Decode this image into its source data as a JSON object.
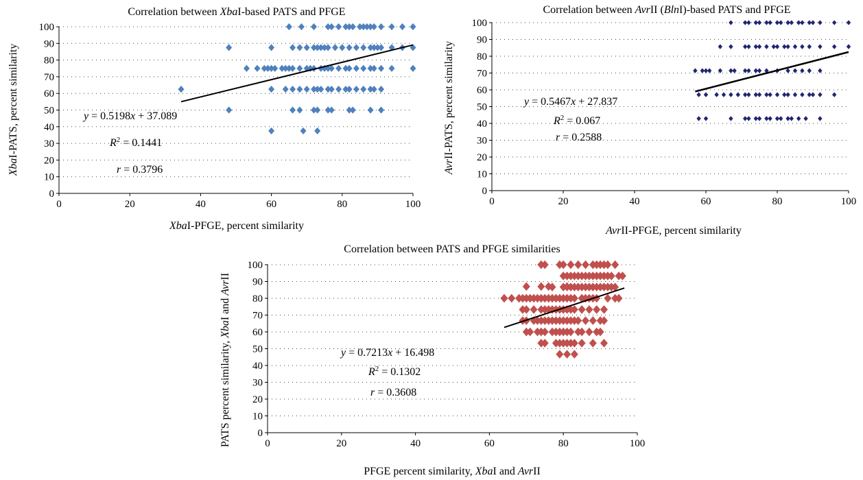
{
  "chart_data": [
    {
      "type": "scatter",
      "title": "Correlation between XbaI-based PATS and PFGE",
      "xlabel": "XbaI-PFGE, percent similarity",
      "ylabel": "XbaI-PATS, percent similarity",
      "xlim": [
        0,
        100
      ],
      "ylim": [
        0,
        100
      ],
      "x_ticks": [
        "0",
        "20",
        "40",
        "60",
        "80",
        "100"
      ],
      "y_ticks": [
        "0",
        "10",
        "20",
        "30",
        "40",
        "50",
        "60",
        "70",
        "80",
        "90",
        "100"
      ],
      "grid": "horizontal-dotted",
      "marker": "diamond",
      "color": "#4f81bd",
      "annotations": [
        "y = 0.5198x + 37.089",
        "R2 = 0.1441",
        "r = 0.3796"
      ],
      "trendline": {
        "slope": 0.5198,
        "intercept": 37.089,
        "x_range": [
          34.5,
          100
        ]
      },
      "points": [
        [
          65,
          100
        ],
        [
          68.5,
          100
        ],
        [
          72,
          100
        ],
        [
          76,
          100
        ],
        [
          77,
          100
        ],
        [
          79,
          100
        ],
        [
          81,
          100
        ],
        [
          82,
          100
        ],
        [
          83,
          100
        ],
        [
          85,
          100
        ],
        [
          86,
          100
        ],
        [
          87,
          100
        ],
        [
          88,
          100
        ],
        [
          89,
          100
        ],
        [
          91,
          100
        ],
        [
          94,
          100
        ],
        [
          97,
          100
        ],
        [
          100,
          100
        ],
        [
          48,
          87.5
        ],
        [
          60,
          87.5
        ],
        [
          66,
          87.5
        ],
        [
          68,
          87.5
        ],
        [
          70,
          87.5
        ],
        [
          72,
          87.5
        ],
        [
          73,
          87.5
        ],
        [
          74,
          87.5
        ],
        [
          75,
          87.5
        ],
        [
          76,
          87.5
        ],
        [
          78,
          87.5
        ],
        [
          80,
          87.5
        ],
        [
          82,
          87.5
        ],
        [
          84,
          87.5
        ],
        [
          86,
          87.5
        ],
        [
          88,
          87.5
        ],
        [
          89,
          87.5
        ],
        [
          90,
          87.5
        ],
        [
          91,
          87.5
        ],
        [
          94,
          87.5
        ],
        [
          97,
          87.5
        ],
        [
          100,
          87.5
        ],
        [
          53,
          75
        ],
        [
          56,
          75
        ],
        [
          58,
          75
        ],
        [
          59,
          75
        ],
        [
          60,
          75
        ],
        [
          61,
          75
        ],
        [
          63,
          75
        ],
        [
          64,
          75
        ],
        [
          65,
          75
        ],
        [
          66,
          75
        ],
        [
          68,
          75
        ],
        [
          70,
          75
        ],
        [
          71,
          75
        ],
        [
          72,
          75
        ],
        [
          74,
          75
        ],
        [
          75,
          75
        ],
        [
          76,
          75
        ],
        [
          77,
          75
        ],
        [
          79,
          75
        ],
        [
          81,
          75
        ],
        [
          82,
          75
        ],
        [
          84,
          75
        ],
        [
          86,
          75
        ],
        [
          88,
          75
        ],
        [
          89,
          75
        ],
        [
          91,
          75
        ],
        [
          94,
          75
        ],
        [
          100,
          75
        ],
        [
          34.5,
          62.5
        ],
        [
          60,
          62.5
        ],
        [
          64,
          62.5
        ],
        [
          66,
          62.5
        ],
        [
          68,
          62.5
        ],
        [
          70,
          62.5
        ],
        [
          72,
          62.5
        ],
        [
          73,
          62.5
        ],
        [
          74,
          62.5
        ],
        [
          76,
          62.5
        ],
        [
          77,
          62.5
        ],
        [
          79,
          62.5
        ],
        [
          81,
          62.5
        ],
        [
          82,
          62.5
        ],
        [
          84,
          62.5
        ],
        [
          86,
          62.5
        ],
        [
          88,
          62.5
        ],
        [
          89,
          62.5
        ],
        [
          91,
          62.5
        ],
        [
          48,
          50
        ],
        [
          66,
          50
        ],
        [
          68,
          50
        ],
        [
          72,
          50
        ],
        [
          73,
          50
        ],
        [
          76,
          50
        ],
        [
          77,
          50
        ],
        [
          82,
          50
        ],
        [
          83,
          50
        ],
        [
          88,
          50
        ],
        [
          91,
          50
        ],
        [
          60,
          37.5
        ],
        [
          69,
          37.5
        ],
        [
          73,
          37.5
        ]
      ]
    },
    {
      "type": "scatter",
      "title": "Correlation between AvrII (BlnI)-based PATS and PFGE",
      "xlabel": "AvrII-PFGE, percent similarity",
      "ylabel": "AvrII-PATS, percent similarity",
      "xlim": [
        0,
        100
      ],
      "ylim": [
        0,
        100
      ],
      "x_ticks": [
        "0",
        "20",
        "40",
        "60",
        "80",
        "100"
      ],
      "y_ticks": [
        "0",
        "10",
        "20",
        "30",
        "40",
        "50",
        "60",
        "70",
        "80",
        "90",
        "100"
      ],
      "grid": "horizontal-dotted",
      "marker": "diamond",
      "color": "#1f2670",
      "annotations": [
        "y = 0.5467x + 27.837",
        "R2 = 0.067",
        "r = 0.2588"
      ],
      "trendline": {
        "slope": 0.5467,
        "intercept": 27.837,
        "x_range": [
          57,
          100
        ]
      },
      "points": [
        [
          67,
          100
        ],
        [
          71,
          100
        ],
        [
          72,
          100
        ],
        [
          74,
          100
        ],
        [
          75,
          100
        ],
        [
          77,
          100
        ],
        [
          78,
          100
        ],
        [
          80,
          100
        ],
        [
          81,
          100
        ],
        [
          83,
          100
        ],
        [
          84,
          100
        ],
        [
          86,
          100
        ],
        [
          87,
          100
        ],
        [
          89,
          100
        ],
        [
          90,
          100
        ],
        [
          92,
          100
        ],
        [
          96,
          100
        ],
        [
          100,
          100
        ],
        [
          64,
          85.7
        ],
        [
          67,
          85.7
        ],
        [
          71,
          85.7
        ],
        [
          72,
          85.7
        ],
        [
          74,
          85.7
        ],
        [
          75,
          85.7
        ],
        [
          77,
          85.7
        ],
        [
          79,
          85.7
        ],
        [
          80,
          85.7
        ],
        [
          82,
          85.7
        ],
        [
          83,
          85.7
        ],
        [
          85,
          85.7
        ],
        [
          87,
          85.7
        ],
        [
          89,
          85.7
        ],
        [
          92,
          85.7
        ],
        [
          96,
          85.7
        ],
        [
          100,
          85.7
        ],
        [
          57,
          71.4
        ],
        [
          59,
          71.4
        ],
        [
          60,
          71.4
        ],
        [
          61,
          71.4
        ],
        [
          64,
          71.4
        ],
        [
          67,
          71.4
        ],
        [
          68,
          71.4
        ],
        [
          71,
          71.4
        ],
        [
          72,
          71.4
        ],
        [
          74,
          71.4
        ],
        [
          75,
          71.4
        ],
        [
          77,
          71.4
        ],
        [
          80,
          71.4
        ],
        [
          83,
          71.4
        ],
        [
          85,
          71.4
        ],
        [
          87,
          71.4
        ],
        [
          89,
          71.4
        ],
        [
          92,
          71.4
        ],
        [
          58,
          57.1
        ],
        [
          60,
          57.1
        ],
        [
          63,
          57.1
        ],
        [
          65,
          57.1
        ],
        [
          67,
          57.1
        ],
        [
          69,
          57.1
        ],
        [
          71,
          57.1
        ],
        [
          72,
          57.1
        ],
        [
          74,
          57.1
        ],
        [
          75,
          57.1
        ],
        [
          77,
          57.1
        ],
        [
          78,
          57.1
        ],
        [
          80,
          57.1
        ],
        [
          82,
          57.1
        ],
        [
          83,
          57.1
        ],
        [
          85,
          57.1
        ],
        [
          87,
          57.1
        ],
        [
          89,
          57.1
        ],
        [
          90,
          57.1
        ],
        [
          92,
          57.1
        ],
        [
          96,
          57.1
        ],
        [
          58,
          42.9
        ],
        [
          60,
          42.9
        ],
        [
          67,
          42.9
        ],
        [
          71,
          42.9
        ],
        [
          72,
          42.9
        ],
        [
          74,
          42.9
        ],
        [
          75,
          42.9
        ],
        [
          77,
          42.9
        ],
        [
          78,
          42.9
        ],
        [
          80,
          42.9
        ],
        [
          81,
          42.9
        ],
        [
          83,
          42.9
        ],
        [
          84,
          42.9
        ],
        [
          86,
          42.9
        ],
        [
          88,
          42.9
        ],
        [
          92,
          42.9
        ]
      ]
    },
    {
      "type": "scatter",
      "title": "Correlation between PATS and PFGE similarities",
      "xlabel": "PFGE percent similarity, XbaI and AvrII",
      "ylabel": "PATS percent similarity, XbaI and AvrII",
      "xlim": [
        0,
        100
      ],
      "ylim": [
        0,
        100
      ],
      "x_ticks": [
        "0",
        "20",
        "40",
        "60",
        "80",
        "100"
      ],
      "y_ticks": [
        "0",
        "10",
        "20",
        "30",
        "40",
        "50",
        "60",
        "70",
        "80",
        "90",
        "100"
      ],
      "grid": "horizontal-dotted",
      "marker": "diamond",
      "color": "#c0504d",
      "annotations": [
        "y = 0.7213x + 16.498",
        "R2 = 0.1302",
        "r = 0.3608"
      ],
      "trendline": {
        "slope": 0.7213,
        "intercept": 16.498,
        "x_range": [
          64,
          96.5
        ]
      },
      "points": [
        [
          74,
          100
        ],
        [
          75,
          100
        ],
        [
          79,
          100
        ],
        [
          80,
          100
        ],
        [
          82,
          100
        ],
        [
          84,
          100
        ],
        [
          86,
          100
        ],
        [
          88,
          100
        ],
        [
          89,
          100
        ],
        [
          90,
          100
        ],
        [
          91,
          100
        ],
        [
          92,
          100
        ],
        [
          94,
          100
        ],
        [
          80,
          93.3
        ],
        [
          81,
          93.3
        ],
        [
          82,
          93.3
        ],
        [
          83,
          93.3
        ],
        [
          84,
          93.3
        ],
        [
          85,
          93.3
        ],
        [
          86,
          93.3
        ],
        [
          87,
          93.3
        ],
        [
          88,
          93.3
        ],
        [
          89,
          93.3
        ],
        [
          90,
          93.3
        ],
        [
          91,
          93.3
        ],
        [
          92,
          93.3
        ],
        [
          93,
          93.3
        ],
        [
          95,
          93.3
        ],
        [
          96,
          93.3
        ],
        [
          77,
          86.7
        ],
        [
          80,
          86.7
        ],
        [
          81,
          86.7
        ],
        [
          82,
          86.7
        ],
        [
          83,
          86.7
        ],
        [
          84,
          86.7
        ],
        [
          85,
          86.7
        ],
        [
          86,
          86.7
        ],
        [
          87,
          86.7
        ],
        [
          88,
          86.7
        ],
        [
          89,
          86.7
        ],
        [
          90,
          86.7
        ],
        [
          91,
          86.7
        ],
        [
          92,
          86.7
        ],
        [
          93,
          86.7
        ],
        [
          94,
          86.7
        ],
        [
          70,
          87
        ],
        [
          74,
          87
        ],
        [
          76,
          87
        ],
        [
          81,
          87
        ],
        [
          64,
          80
        ],
        [
          66,
          80
        ],
        [
          68,
          80
        ],
        [
          69,
          80
        ],
        [
          70,
          80
        ],
        [
          71,
          80
        ],
        [
          72,
          80
        ],
        [
          73,
          80
        ],
        [
          74,
          80
        ],
        [
          75,
          80
        ],
        [
          76,
          80
        ],
        [
          77,
          80
        ],
        [
          78,
          80
        ],
        [
          79,
          80
        ],
        [
          80,
          80
        ],
        [
          81,
          80
        ],
        [
          82,
          80
        ],
        [
          83,
          80
        ],
        [
          85,
          80
        ],
        [
          86,
          80
        ],
        [
          87,
          80
        ],
        [
          88,
          80
        ],
        [
          89,
          80
        ],
        [
          92,
          80
        ],
        [
          94,
          80
        ],
        [
          95,
          80
        ],
        [
          69,
          73.3
        ],
        [
          70,
          73.3
        ],
        [
          72,
          73.3
        ],
        [
          74,
          73.3
        ],
        [
          75,
          73.3
        ],
        [
          76,
          73.3
        ],
        [
          77,
          73.3
        ],
        [
          78,
          73.3
        ],
        [
          79,
          73.3
        ],
        [
          80,
          73.3
        ],
        [
          81,
          73.3
        ],
        [
          82,
          73.3
        ],
        [
          83,
          73.3
        ],
        [
          85,
          73.3
        ],
        [
          87,
          73.3
        ],
        [
          89,
          73.3
        ],
        [
          91,
          73.3
        ],
        [
          69,
          66.7
        ],
        [
          70,
          66.7
        ],
        [
          72,
          66.7
        ],
        [
          73,
          66.7
        ],
        [
          74,
          66.7
        ],
        [
          75,
          66.7
        ],
        [
          76,
          66.7
        ],
        [
          77,
          66.7
        ],
        [
          78,
          66.7
        ],
        [
          79,
          66.7
        ],
        [
          80,
          66.7
        ],
        [
          81,
          66.7
        ],
        [
          82,
          66.7
        ],
        [
          83,
          66.7
        ],
        [
          84,
          66.7
        ],
        [
          86,
          66.7
        ],
        [
          88,
          66.7
        ],
        [
          90,
          66.7
        ],
        [
          91,
          66.7
        ],
        [
          70,
          60
        ],
        [
          71,
          60
        ],
        [
          73,
          60
        ],
        [
          74,
          60
        ],
        [
          75,
          60
        ],
        [
          77,
          60
        ],
        [
          78,
          60
        ],
        [
          79,
          60
        ],
        [
          80,
          60
        ],
        [
          81,
          60
        ],
        [
          82,
          60
        ],
        [
          84,
          60
        ],
        [
          85,
          60
        ],
        [
          87,
          60
        ],
        [
          89,
          60
        ],
        [
          90,
          60
        ],
        [
          74,
          53.3
        ],
        [
          75,
          53.3
        ],
        [
          78,
          53.3
        ],
        [
          79,
          53.3
        ],
        [
          80,
          53.3
        ],
        [
          81,
          53.3
        ],
        [
          82,
          53.3
        ],
        [
          83,
          53.3
        ],
        [
          85,
          53.3
        ],
        [
          88,
          53.3
        ],
        [
          91,
          53.3
        ],
        [
          79,
          46.7
        ],
        [
          81,
          46.7
        ],
        [
          83,
          46.7
        ]
      ]
    }
  ]
}
